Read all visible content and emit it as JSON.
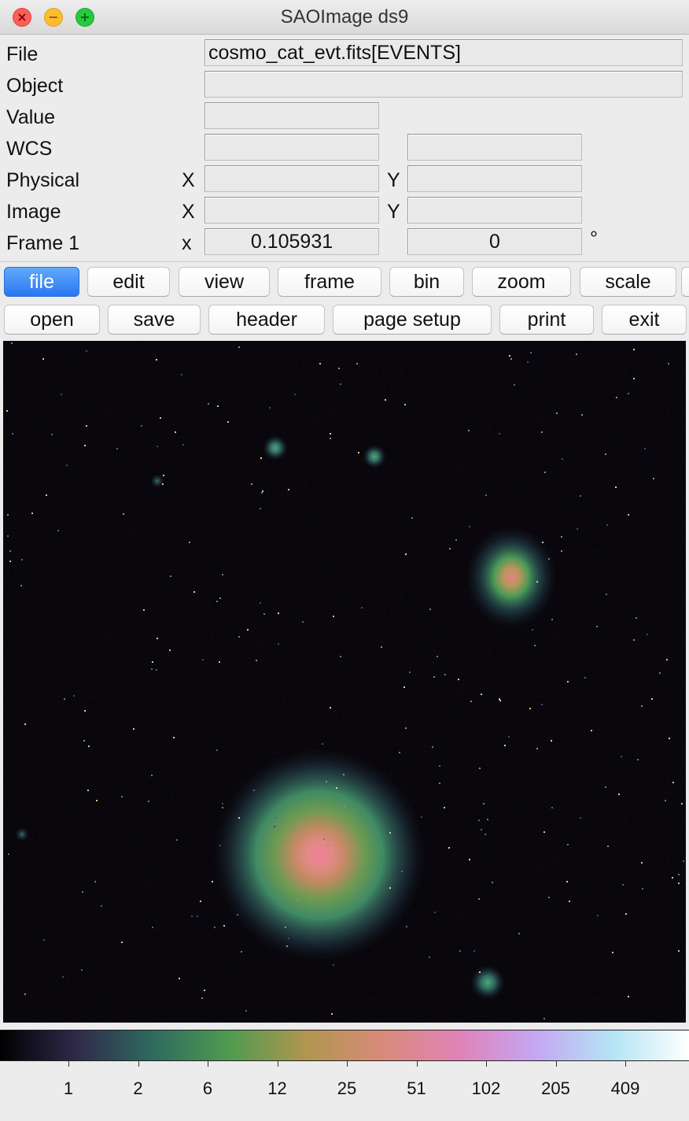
{
  "window": {
    "title": "SAOImage ds9",
    "controls": {
      "close_glyph": "×",
      "minimize_glyph": "−",
      "zoom_glyph": "+"
    }
  },
  "info_panel": {
    "file": {
      "label": "File",
      "value": "cosmo_cat_evt.fits[EVENTS]"
    },
    "object": {
      "label": "Object",
      "value": ""
    },
    "value": {
      "label": "Value",
      "value": ""
    },
    "wcs": {
      "label": "WCS",
      "value1": "",
      "value2": ""
    },
    "physical": {
      "label": "Physical",
      "x_label": "X",
      "y_label": "Y",
      "x_value": "",
      "y_value": ""
    },
    "image": {
      "label": "Image",
      "x_label": "X",
      "y_label": "Y",
      "x_value": "",
      "y_value": ""
    },
    "frame": {
      "label": "Frame 1",
      "zoom_label": "x",
      "zoom_value": "0.105931",
      "angle_value": "0",
      "angle_unit": "°"
    }
  },
  "menu_buttons": [
    {
      "label": "file",
      "active": true
    },
    {
      "label": "edit"
    },
    {
      "label": "view"
    },
    {
      "label": "frame"
    },
    {
      "label": "bin"
    },
    {
      "label": "zoom"
    },
    {
      "label": "scale"
    }
  ],
  "file_buttons": [
    {
      "label": "open"
    },
    {
      "label": "save"
    },
    {
      "label": "header"
    },
    {
      "label": "page setup"
    },
    {
      "label": "print"
    },
    {
      "label": "exit"
    }
  ],
  "colorbar": {
    "tick_labels": [
      "1",
      "2",
      "6",
      "12",
      "25",
      "51",
      "102",
      "205",
      "409"
    ],
    "colors": [
      "#000000",
      "#2f2a4a",
      "#2f6a5f",
      "#4f9b4f",
      "#b0964f",
      "#d98a7a",
      "#e083b8",
      "#c5a6f3",
      "#b4e4f3",
      "#ffffff"
    ]
  },
  "image": {
    "background": "#08060b",
    "source_colors": {
      "core": "#f07f98",
      "mid": "#c28a62",
      "halo": "#3f9a68",
      "outer": "#2b5b5f"
    }
  }
}
